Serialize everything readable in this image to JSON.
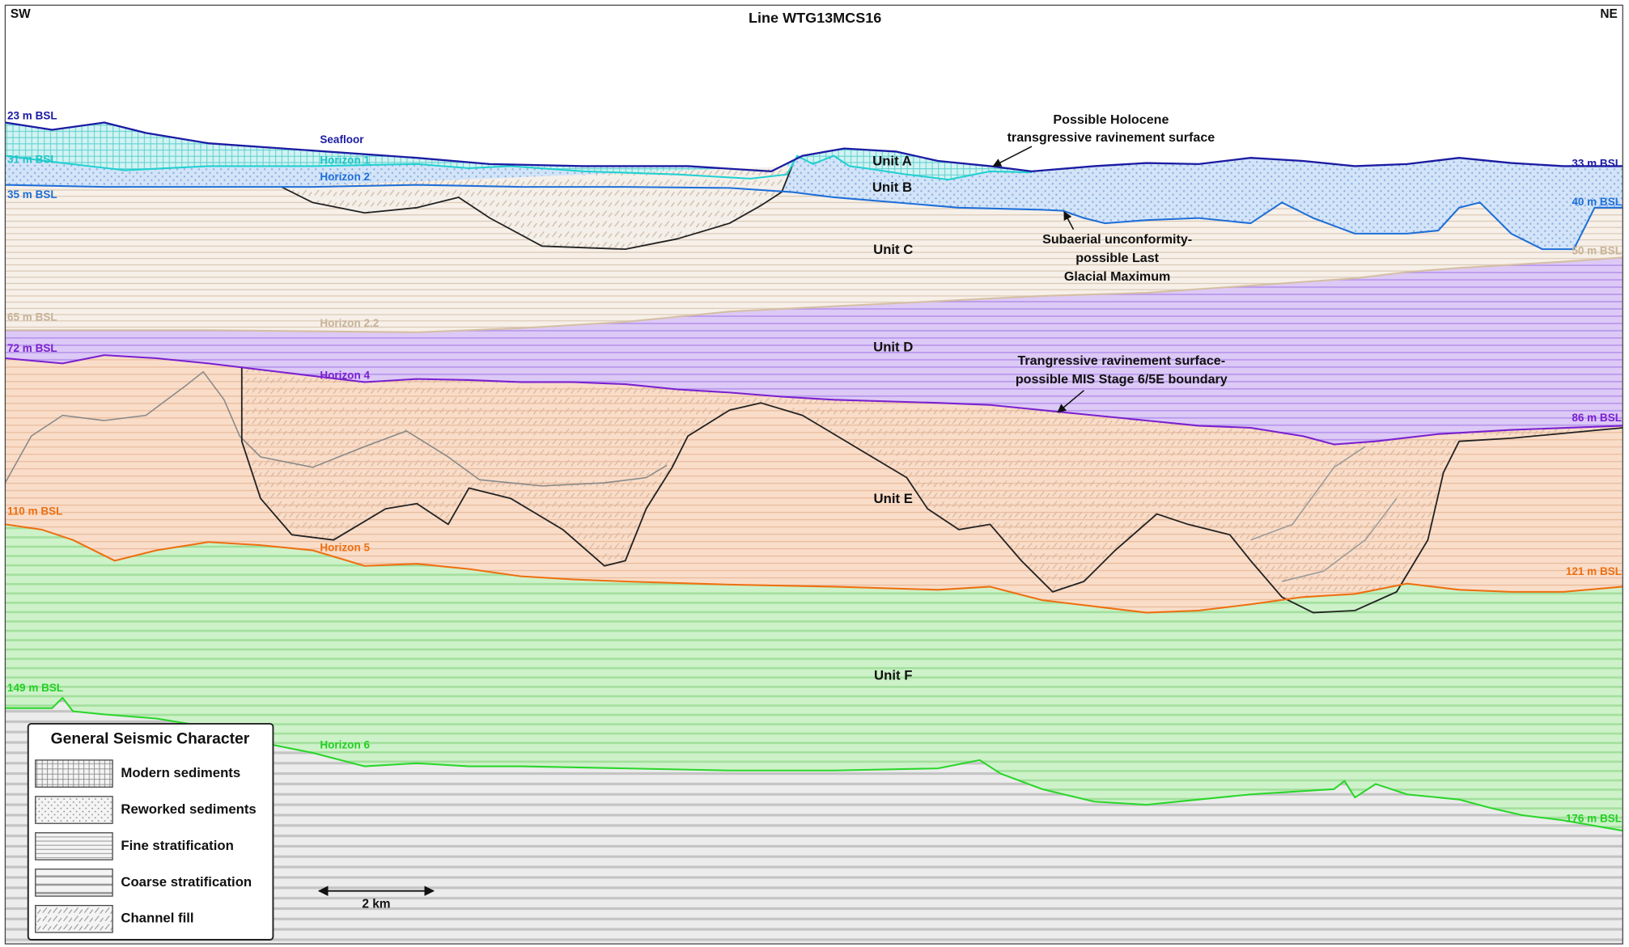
{
  "title": "Line WTG13MCS16",
  "orientation": {
    "left": "SW",
    "right": "NE"
  },
  "depth_labels_left": [
    "23 m BSL",
    "31 m BSL",
    "35 m BSL",
    "65 m BSL",
    "72 m BSL",
    "110 m BSL",
    "149 m BSL"
  ],
  "depth_labels_right": [
    "33 m BSL",
    "40 m BSL",
    "50 m BSL",
    "86 m BSL",
    "121 m BSL",
    "176 m BSL"
  ],
  "horizons": [
    "Seafloor",
    "Horizon 1",
    "Horizon 2",
    "Horizon 2.2",
    "Horizon 4",
    "Horizon 5",
    "Horizon 6"
  ],
  "units": [
    "Unit A",
    "Unit B",
    "Unit C",
    "Unit D",
    "Unit E",
    "Unit F"
  ],
  "annotations": [
    {
      "lines": [
        "Possible Holocene",
        "transgressive ravinement surface"
      ]
    },
    {
      "lines": [
        "Subaerial unconformity-",
        "possible Last",
        "Glacial Maximum"
      ]
    },
    {
      "lines": [
        "Trangressive ravinement surface-",
        "possible MIS Stage 6/5E boundary"
      ]
    }
  ],
  "legend": {
    "title": "General Seismic Character",
    "items": [
      "Modern sediments",
      "Reworked sediments",
      "Fine stratification",
      "Coarse stratification",
      "Channel fill"
    ]
  },
  "scale_bar": "2 km"
}
